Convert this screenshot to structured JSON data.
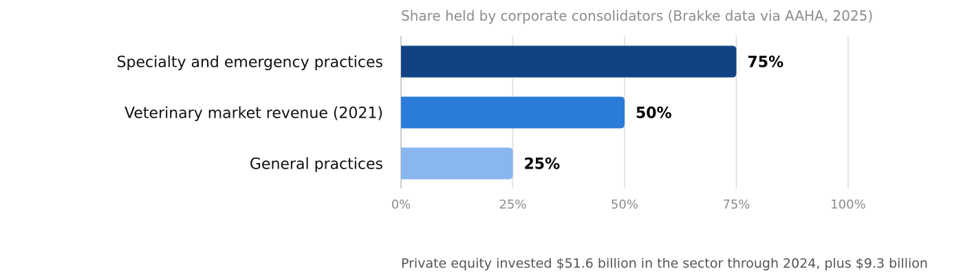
{
  "chart_data": {
    "type": "bar",
    "orientation": "horizontal",
    "subtitle": "Share held by corporate consolidators (Brakke data via AAHA, 2025)",
    "categories": [
      "Specialty and emergency practices",
      "Veterinary market revenue (2021)",
      "General practices"
    ],
    "values": [
      75,
      50,
      25
    ],
    "value_labels": [
      "75%",
      "50%",
      "25%"
    ],
    "colors": [
      "#114384",
      "#2b7bd8",
      "#88b6f0"
    ],
    "xlim": [
      0,
      100
    ],
    "xticks": [
      0,
      25,
      50,
      75,
      100
    ],
    "xtick_labels": [
      "0%",
      "25%",
      "50%",
      "75%",
      "100%"
    ],
    "grid": true,
    "footnote": "Private equity invested $51.6 billion in the sector through 2024, plus $9.3 billion"
  }
}
